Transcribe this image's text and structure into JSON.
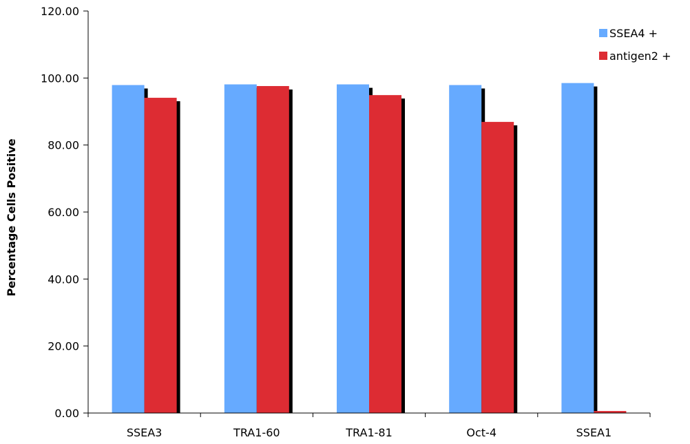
{
  "chart_data": {
    "type": "bar",
    "title": "",
    "xlabel": "",
    "ylabel": "Percentage Cells Positive",
    "categories": [
      "SSEA3",
      "TRA1-60",
      "TRA1-81",
      "Oct-4",
      "SSEA1"
    ],
    "series": [
      {
        "name": "SSEA4 +",
        "color": "#66aaff",
        "values": [
          97.9,
          98.1,
          98.1,
          97.9,
          98.5
        ]
      },
      {
        "name": "antigen2 +",
        "color": "#dd2c33",
        "values": [
          94.1,
          97.6,
          94.9,
          86.9,
          0.6
        ]
      }
    ],
    "ylim": [
      0,
      120
    ],
    "yticks": [
      0,
      20,
      40,
      60,
      80,
      100,
      120
    ],
    "ytick_labels": [
      "0.00",
      "20.00",
      "40.00",
      "60.00",
      "80.00",
      "100.00",
      "120.00"
    ],
    "grid": false,
    "legend_position": "top-right",
    "shadow_color": "#000000"
  }
}
